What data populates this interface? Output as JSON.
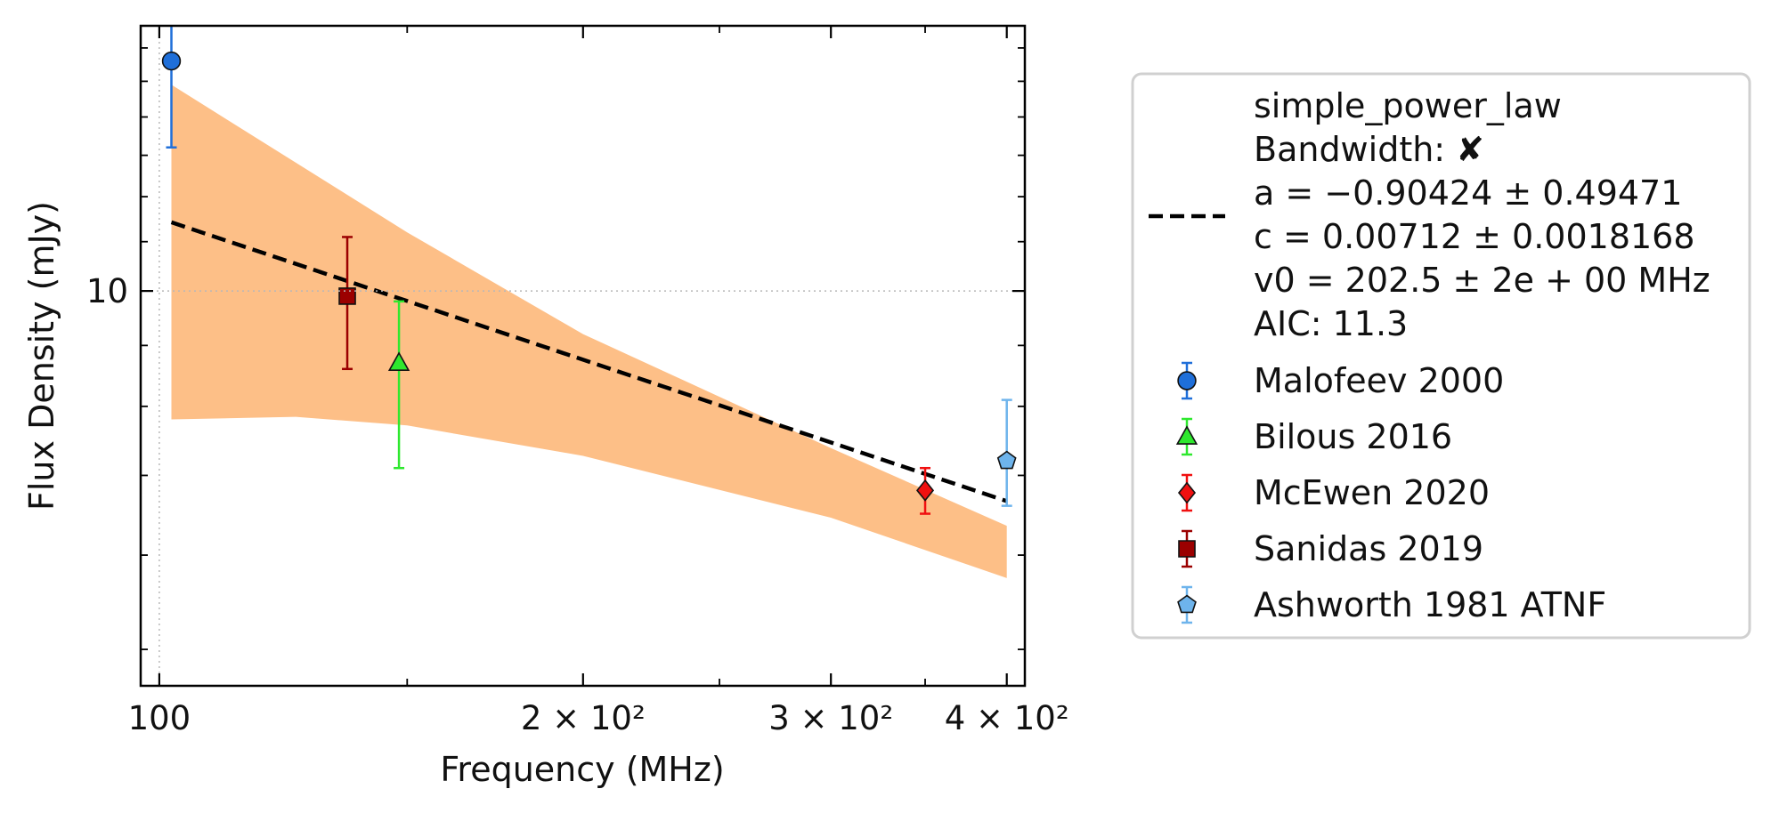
{
  "chart_data": {
    "type": "scatter",
    "xlabel": "Frequency (MHz)",
    "ylabel": "Flux Density (mJy)",
    "xscale": "log",
    "yscale": "log",
    "xlim": [
      97,
      412
    ],
    "ylim": [
      4.66,
      16.7
    ],
    "x_ticks": [
      {
        "value": 100,
        "label": "100"
      },
      {
        "value": 200,
        "label": "2 × 10²"
      },
      {
        "value": 300,
        "label": "3 × 10²"
      },
      {
        "value": 400,
        "label": "4 × 10²"
      }
    ],
    "y_ticks": [
      {
        "value": 10,
        "label": "10"
      }
    ],
    "grid": "dotted at x=100 and y=10",
    "legend_placement": "outside right",
    "fit": {
      "legend_lines": [
        "simple_power_law",
        "Bandwidth: ✘",
        "a = −0.90424 ± 0.49471",
        "c = 0.00712 ± 0.0018168",
        "v0 = 202.5 ± 2e + 00 MHz",
        "AIC: 11.3"
      ],
      "line_color": "#000000",
      "band_color": "#fdbf87",
      "x_start": 102,
      "x_end": 400,
      "line_y_start": 11.42,
      "line_y_end": 6.66,
      "band_upper": [
        [
          102,
          14.9
        ],
        [
          150,
          11.2
        ],
        [
          200,
          9.2
        ],
        [
          300,
          7.38
        ],
        [
          400,
          6.35
        ]
      ],
      "band_lower": [
        [
          102,
          7.8
        ],
        [
          125,
          7.84
        ],
        [
          150,
          7.71
        ],
        [
          200,
          7.27
        ],
        [
          300,
          6.45
        ],
        [
          400,
          5.74
        ]
      ]
    },
    "series": [
      {
        "name": "Malofeev 2000",
        "marker": "circle",
        "color": "#1f6fd9",
        "points": [
          {
            "x": 102,
            "y": 15.6,
            "yerr_low": 13.2,
            "yerr_high": 18.3
          }
        ]
      },
      {
        "name": "Bilous 2016",
        "marker": "triangle",
        "color": "#2ee82e",
        "points": [
          {
            "x": 148,
            "y": 8.7,
            "yerr_low": 7.1,
            "yerr_high": 9.8
          }
        ]
      },
      {
        "name": "McEwen 2020",
        "marker": "diamond",
        "color": "#f01010",
        "points": [
          {
            "x": 350,
            "y": 6.8,
            "yerr_low": 6.5,
            "yerr_high": 7.1
          }
        ]
      },
      {
        "name": "Sanidas 2019",
        "marker": "square",
        "color": "#9b0000",
        "points": [
          {
            "x": 136,
            "y": 9.9,
            "yerr_low": 8.6,
            "yerr_high": 11.1
          }
        ]
      },
      {
        "name": "Ashworth 1981 ATNF",
        "marker": "pentagon",
        "color": "#6eb4ec",
        "points": [
          {
            "x": 400,
            "y": 7.2,
            "yerr_low": 6.6,
            "yerr_high": 8.1
          }
        ]
      }
    ]
  }
}
